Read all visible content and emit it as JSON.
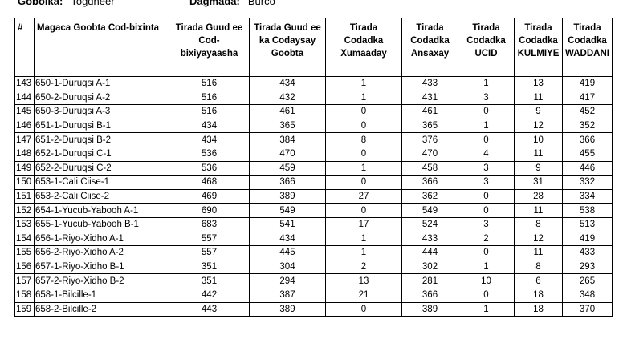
{
  "header": {
    "region_label": "Gobolka:",
    "region": "Togdheer",
    "district_label": "Dagmada:",
    "district": "Burco"
  },
  "table": {
    "columns": [
      "#",
      "Magaca Goobta Cod-bixinta",
      "Tirada Guud ee\nCod-bixiyayaasha",
      "Tirada Guud ee\nka Codaysay\nGoobta",
      "Tirada\nCodadka\nXumaaday",
      "Tirada\nCodadka\nAnsaxay",
      "Tirada\nCodadka\nUCID",
      "Tirada\nCodadka\nKULMIYE",
      "Tirada\nCodadka\nWADDANI"
    ],
    "rows": [
      [
        "143",
        "650-1-Duruqsi A-1",
        "516",
        "434",
        "1",
        "433",
        "1",
        "13",
        "419"
      ],
      [
        "144",
        "650-2-Duruqsi A-2",
        "516",
        "432",
        "1",
        "431",
        "3",
        "11",
        "417"
      ],
      [
        "145",
        "650-3-Duruqsi A-3",
        "516",
        "461",
        "0",
        "461",
        "0",
        "9",
        "452"
      ],
      [
        "146",
        "651-1-Duruqsi B-1",
        "434",
        "365",
        "0",
        "365",
        "1",
        "12",
        "352"
      ],
      [
        "147",
        "651-2-Duruqsi B-2",
        "434",
        "384",
        "8",
        "376",
        "0",
        "10",
        "366"
      ],
      [
        "148",
        "652-1-Duruqsi C-1",
        "536",
        "470",
        "0",
        "470",
        "4",
        "11",
        "455"
      ],
      [
        "149",
        "652-2-Duruqsi C-2",
        "536",
        "459",
        "1",
        "458",
        "3",
        "9",
        "446"
      ],
      [
        "150",
        "653-1-Cali Ciise-1",
        "468",
        "366",
        "0",
        "366",
        "3",
        "31",
        "332"
      ],
      [
        "151",
        "653-2-Cali Ciise-2",
        "469",
        "389",
        "27",
        "362",
        "0",
        "28",
        "334"
      ],
      [
        "152",
        "654-1-Yucub-Yabooh A-1",
        "690",
        "549",
        "0",
        "549",
        "0",
        "11",
        "538"
      ],
      [
        "153",
        "655-1-Yucub-Yabooh B-1",
        "683",
        "541",
        "17",
        "524",
        "3",
        "8",
        "513"
      ],
      [
        "154",
        "656-1-Riyo-Xidho A-1",
        "557",
        "434",
        "1",
        "433",
        "2",
        "12",
        "419"
      ],
      [
        "155",
        "656-2-Riyo-Xidho A-2",
        "557",
        "445",
        "1",
        "444",
        "0",
        "11",
        "433"
      ],
      [
        "156",
        "657-1-Riyo-Xidho B-1",
        "351",
        "304",
        "2",
        "302",
        "1",
        "8",
        "293"
      ],
      [
        "157",
        "657-2-Riyo-Xidho B-2",
        "351",
        "294",
        "13",
        "281",
        "10",
        "6",
        "265"
      ],
      [
        "158",
        "658-1-Bilcille-1",
        "442",
        "387",
        "21",
        "366",
        "0",
        "18",
        "348"
      ],
      [
        "159",
        "658-2-Bilcille-2",
        "443",
        "389",
        "0",
        "389",
        "1",
        "18",
        "370"
      ]
    ]
  }
}
